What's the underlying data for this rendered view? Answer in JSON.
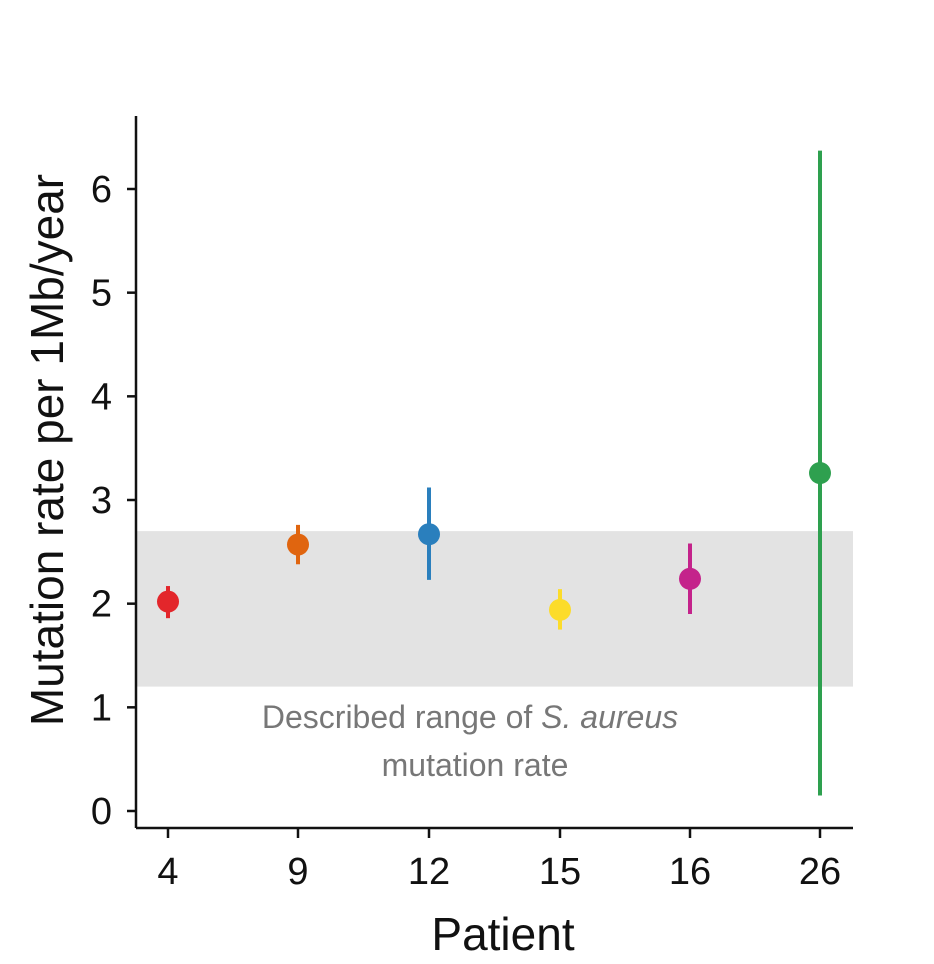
{
  "chart_data": {
    "type": "scatter",
    "title": "",
    "xlabel": "Patient",
    "ylabel": "Mutation rate per 1Mb/year",
    "ylim": [
      -0.15,
      6.6
    ],
    "yticks": [
      "0",
      "1",
      "2",
      "3",
      "4",
      "5",
      "6"
    ],
    "grid": false,
    "categories": [
      "4",
      "9",
      "12",
      "15",
      "16",
      "26"
    ],
    "points": [
      {
        "x": "4",
        "y": 2.02,
        "low": 1.86,
        "high": 2.17,
        "color": "#e3262b"
      },
      {
        "x": "9",
        "y": 2.57,
        "low": 2.38,
        "high": 2.76,
        "color": "#e0650f"
      },
      {
        "x": "12",
        "y": 2.67,
        "low": 2.23,
        "high": 3.12,
        "color": "#2a7fbd"
      },
      {
        "x": "15",
        "y": 1.94,
        "low": 1.75,
        "high": 2.14,
        "color": "#fcdc2a"
      },
      {
        "x": "16",
        "y": 2.24,
        "low": 1.9,
        "high": 2.58,
        "color": "#c4238b"
      },
      {
        "x": "26",
        "y": 3.26,
        "low": 0.15,
        "high": 6.37,
        "color": "#2ea04f"
      }
    ],
    "band": {
      "low": 1.2,
      "high": 2.7,
      "color": "#e3e3e3",
      "label_line1_prefix": "Described range of ",
      "label_line1_italic": "S. aureus",
      "label_line2": "mutation rate"
    }
  }
}
